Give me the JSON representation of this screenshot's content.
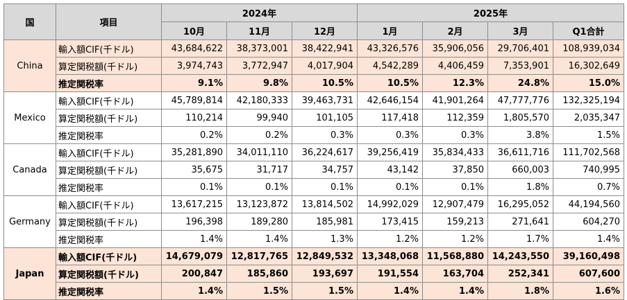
{
  "header": {
    "country": "国",
    "item": "項目",
    "years": [
      "2024年",
      "2025年"
    ],
    "months": [
      "10月",
      "11月",
      "12月",
      "1月",
      "2月",
      "3月",
      "Q1合計"
    ]
  },
  "groups": [
    {
      "country": "China",
      "rows": [
        {
          "label": "輸入額CIF(千ドル)",
          "values": [
            "43,684,622",
            "38,373,001",
            "38,422,941",
            "43,326,576",
            "35,906,056",
            "29,706,401",
            "108,939,034"
          ]
        },
        {
          "label": "算定関税額(千ドル)",
          "values": [
            "3,974,743",
            "3,772,947",
            "4,017,904",
            "4,542,289",
            "4,406,459",
            "7,353,901",
            "16,302,649"
          ]
        },
        {
          "label": "推定関税率",
          "values": [
            "9.1%",
            "9.8%",
            "10.5%",
            "10.5%",
            "12.3%",
            "24.8%",
            "15.0%"
          ]
        }
      ]
    },
    {
      "country": "Mexico",
      "rows": [
        {
          "label": "輸入額CIF(千ドル)",
          "values": [
            "45,789,814",
            "42,180,333",
            "39,463,731",
            "42,646,154",
            "41,901,264",
            "47,777,776",
            "132,325,194"
          ]
        },
        {
          "label": "算定関税額(千ドル)",
          "values": [
            "110,214",
            "99,940",
            "101,105",
            "117,418",
            "112,359",
            "1,805,570",
            "2,035,347"
          ]
        },
        {
          "label": "推定関税率",
          "values": [
            "0.2%",
            "0.2%",
            "0.3%",
            "0.3%",
            "0.3%",
            "3.8%",
            "1.5%"
          ]
        }
      ]
    },
    {
      "country": "Canada",
      "rows": [
        {
          "label": "輸入額CIF(千ドル)",
          "values": [
            "35,281,890",
            "34,011,110",
            "36,224,617",
            "39,256,419",
            "35,834,433",
            "36,611,716",
            "111,702,568"
          ]
        },
        {
          "label": "算定関税額(千ドル)",
          "values": [
            "35,675",
            "31,717",
            "34,757",
            "43,142",
            "37,850",
            "660,003",
            "740,995"
          ]
        },
        {
          "label": "推定関税率",
          "values": [
            "0.1%",
            "0.1%",
            "0.1%",
            "0.1%",
            "0.1%",
            "1.8%",
            "0.7%"
          ]
        }
      ]
    },
    {
      "country": "Germany",
      "rows": [
        {
          "label": "輸入額CIF(千ドル)",
          "values": [
            "13,617,215",
            "13,123,872",
            "13,814,502",
            "14,992,029",
            "12,907,479",
            "16,295,052",
            "44,194,560"
          ]
        },
        {
          "label": "算定関税額(千ドル)",
          "values": [
            "196,398",
            "189,280",
            "185,981",
            "173,415",
            "159,213",
            "271,641",
            "604,270"
          ]
        },
        {
          "label": "推定関税率",
          "values": [
            "1.4%",
            "1.4%",
            "1.3%",
            "1.2%",
            "1.2%",
            "1.7%",
            "1.4%"
          ]
        }
      ]
    },
    {
      "country": "Japan",
      "rows": [
        {
          "label": "輸入額CIF(千ドル)",
          "values": [
            "14,679,079",
            "12,817,765",
            "12,849,532",
            "13,348,068",
            "11,568,880",
            "14,243,550",
            "39,160,498"
          ]
        },
        {
          "label": "算定関税額(千ドル)",
          "values": [
            "200,847",
            "185,860",
            "193,697",
            "191,554",
            "163,704",
            "252,341",
            "607,600"
          ]
        },
        {
          "label": "推定関税率",
          "values": [
            "1.4%",
            "1.5%",
            "1.5%",
            "1.4%",
            "1.4%",
            "1.8%",
            "1.6%"
          ]
        }
      ]
    }
  ],
  "colors": {
    "header_bg": "#d9d9d9",
    "highlight_bg": "#fce4d6",
    "border": "#8c8c8c"
  }
}
